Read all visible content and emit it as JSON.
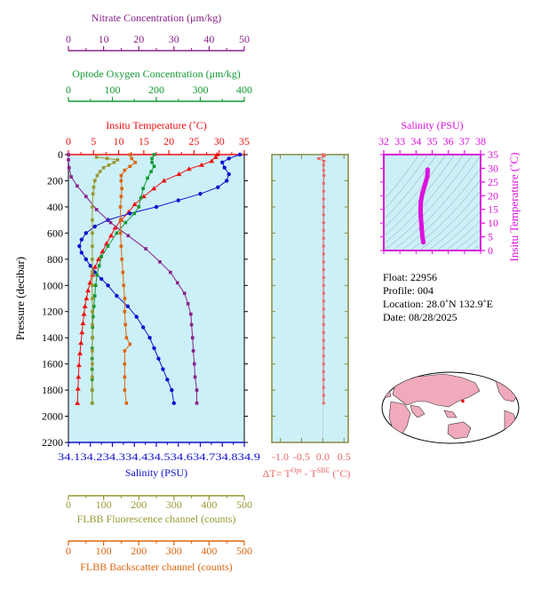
{
  "colors": {
    "nitrate": "#882288",
    "oxygen": "#119933",
    "temperature": "#ee1111",
    "salinity": "#1111cc",
    "fluorescence": "#999933",
    "backscatter": "#dd6611",
    "delta": "#ee6666",
    "ts": "#dd11dd",
    "plot_bg": "#ccf0f8",
    "axis": "#888844"
  },
  "chart_data": [
    {
      "type": "line",
      "ylabel": "Pressure (decibar)",
      "yticks": [
        0,
        200,
        400,
        600,
        800,
        1000,
        1200,
        1400,
        1600,
        1800,
        2000,
        2200
      ],
      "ylim": [
        0,
        2200
      ],
      "axes": {
        "nitrate": {
          "label": "Nitrate Concentration (μm/kg)",
          "ticks": [
            0,
            10,
            20,
            30,
            40,
            50
          ],
          "range": [
            0,
            50
          ]
        },
        "oxygen": {
          "label": "Optode Oxygen Concentration (μm/kg)",
          "ticks": [
            0,
            100,
            200,
            300,
            400
          ],
          "range": [
            0,
            400
          ]
        },
        "temperature": {
          "label": "Insitu Temperature (˚C)",
          "ticks": [
            0,
            5,
            10,
            15,
            20,
            25,
            30,
            35
          ],
          "range": [
            0,
            35
          ]
        },
        "salinity": {
          "label": "Salinity (PSU)",
          "ticks": [
            "34.1",
            "34.2",
            "34.3",
            "34.4",
            "34.5",
            "34.6",
            "34.7",
            "34.8",
            "34.9"
          ],
          "tick_row": "34.134.234.334.434.534.634.734.834.9",
          "range": [
            34.1,
            34.9
          ]
        },
        "fluorescence": {
          "label": "FLBB Fluorescence channel (counts)",
          "ticks": [
            0,
            100,
            200,
            300,
            400,
            500
          ],
          "range": [
            0,
            500
          ]
        },
        "backscatter": {
          "label": "FLBB Backscatter channel (counts)",
          "ticks": [
            0,
            100,
            200,
            300,
            400,
            500
          ],
          "range": [
            0,
            500
          ]
        }
      },
      "series": [
        {
          "key": "temperature",
          "axis": "temperature",
          "points": [
            [
              29.6,
              0
            ],
            [
              29.3,
              20
            ],
            [
              28.5,
              50
            ],
            [
              26.5,
              80
            ],
            [
              24,
              110
            ],
            [
              22,
              150
            ],
            [
              19,
              200
            ],
            [
              17,
              260
            ],
            [
              15,
              320
            ],
            [
              13.2,
              380
            ],
            [
              12,
              440
            ],
            [
              10.5,
              500
            ],
            [
              9.3,
              560
            ],
            [
              8.5,
              620
            ],
            [
              7.6,
              680
            ],
            [
              6.8,
              740
            ],
            [
              6,
              800
            ],
            [
              5.3,
              860
            ],
            [
              4.8,
              920
            ],
            [
              4.3,
              980
            ],
            [
              3.9,
              1040
            ],
            [
              3.6,
              1100
            ],
            [
              3.3,
              1160
            ],
            [
              3.1,
              1220
            ],
            [
              2.9,
              1290
            ],
            [
              2.7,
              1360
            ],
            [
              2.5,
              1440
            ],
            [
              2.3,
              1520
            ],
            [
              2.1,
              1610
            ],
            [
              2.0,
              1700
            ],
            [
              1.9,
              1790
            ],
            [
              1.8,
              1900
            ]
          ]
        },
        {
          "key": "salinity",
          "axis": "salinity",
          "points": [
            [
              34.88,
              0
            ],
            [
              34.83,
              30
            ],
            [
              34.8,
              60
            ],
            [
              34.81,
              100
            ],
            [
              34.83,
              150
            ],
            [
              34.82,
              200
            ],
            [
              34.78,
              250
            ],
            [
              34.7,
              300
            ],
            [
              34.6,
              350
            ],
            [
              34.5,
              400
            ],
            [
              34.38,
              450
            ],
            [
              34.28,
              500
            ],
            [
              34.22,
              550
            ],
            [
              34.18,
              600
            ],
            [
              34.16,
              650
            ],
            [
              34.15,
              700
            ],
            [
              34.16,
              750
            ],
            [
              34.18,
              800
            ],
            [
              34.2,
              850
            ],
            [
              34.22,
              900
            ],
            [
              34.25,
              950
            ],
            [
              34.28,
              1000
            ],
            [
              34.32,
              1080
            ],
            [
              34.37,
              1160
            ],
            [
              34.41,
              1240
            ],
            [
              34.44,
              1320
            ],
            [
              34.47,
              1400
            ],
            [
              34.49,
              1480
            ],
            [
              34.51,
              1560
            ],
            [
              34.53,
              1640
            ],
            [
              34.55,
              1720
            ],
            [
              34.57,
              1800
            ],
            [
              34.58,
              1900
            ]
          ]
        },
        {
          "key": "oxygen",
          "axis": "oxygen",
          "points": [
            [
              195,
              0
            ],
            [
              190,
              30
            ],
            [
              190,
              60
            ],
            [
              195,
              90
            ],
            [
              188,
              130
            ],
            [
              180,
              180
            ],
            [
              170,
              260
            ],
            [
              165,
              330
            ],
            [
              160,
              400
            ],
            [
              150,
              450
            ],
            [
              130,
              520
            ],
            [
              110,
              600
            ],
            [
              90,
              700
            ],
            [
              75,
              780
            ],
            [
              70,
              850
            ],
            [
              65,
              920
            ],
            [
              62,
              1000
            ],
            [
              60,
              1080
            ],
            [
              58,
              1160
            ],
            [
              56,
              1240
            ],
            [
              55,
              1320
            ],
            [
              55,
              1400
            ],
            [
              54,
              1480
            ],
            [
              54,
              1560
            ],
            [
              54,
              1640
            ],
            [
              54,
              1720
            ],
            [
              54,
              1800
            ],
            [
              54,
              1900
            ]
          ]
        },
        {
          "key": "nitrate",
          "axis": "nitrate",
          "points": [
            [
              0,
              0
            ],
            [
              0,
              40
            ],
            [
              0.2,
              100
            ],
            [
              0.8,
              170
            ],
            [
              2.5,
              240
            ],
            [
              5,
              320
            ],
            [
              8,
              420
            ],
            [
              12,
              520
            ],
            [
              17,
              620
            ],
            [
              22,
              720
            ],
            [
              26,
              820
            ],
            [
              29,
              900
            ],
            [
              31,
              980
            ],
            [
              33,
              1060
            ],
            [
              34,
              1140
            ],
            [
              34.8,
              1220
            ],
            [
              35,
              1300
            ],
            [
              35.3,
              1400
            ],
            [
              35.5,
              1500
            ],
            [
              35.8,
              1600
            ],
            [
              36,
              1700
            ],
            [
              36.5,
              1800
            ],
            [
              36.5,
              1900
            ]
          ]
        },
        {
          "key": "fluorescence",
          "axis": "fluorescence",
          "points": [
            [
              80,
              20
            ],
            [
              110,
              30
            ],
            [
              140,
              40
            ],
            [
              130,
              60
            ],
            [
              115,
              80
            ],
            [
              100,
              100
            ],
            [
              90,
              130
            ],
            [
              82,
              160
            ],
            [
              75,
              200
            ],
            [
              72,
              250
            ],
            [
              70,
              300
            ],
            [
              68,
              400
            ],
            [
              68,
              500
            ],
            [
              68,
              600
            ],
            [
              68,
              700
            ],
            [
              68,
              800
            ],
            [
              68,
              900
            ],
            [
              68,
              1000
            ],
            [
              68,
              1100
            ],
            [
              68,
              1200
            ],
            [
              68,
              1300
            ],
            [
              68,
              1400
            ],
            [
              68,
              1500
            ],
            [
              68,
              1600
            ],
            [
              68,
              1700
            ],
            [
              68,
              1800
            ],
            [
              68,
              1900
            ]
          ]
        },
        {
          "key": "backscatter",
          "axis": "backscatter",
          "points": [
            [
              175,
              0
            ],
            [
              180,
              30
            ],
            [
              190,
              60
            ],
            [
              175,
              90
            ],
            [
              160,
              120
            ],
            [
              150,
              160
            ],
            [
              150,
              200
            ],
            [
              152,
              260
            ],
            [
              150,
              320
            ],
            [
              148,
              400
            ],
            [
              148,
              500
            ],
            [
              148,
              600
            ],
            [
              150,
              700
            ],
            [
              152,
              800
            ],
            [
              155,
              900
            ],
            [
              157,
              1000
            ],
            [
              160,
              1100
            ],
            [
              160,
              1200
            ],
            [
              162,
              1300
            ],
            [
              165,
              1400
            ],
            [
              175,
              1450
            ],
            [
              160,
              1500
            ],
            [
              160,
              1600
            ],
            [
              160,
              1700
            ],
            [
              160,
              1800
            ],
            [
              165,
              1900
            ]
          ]
        }
      ]
    },
    {
      "type": "line",
      "xlabel": "ΔT= T^Opt - T^SBE (˚C)",
      "xlabel_parts": {
        "pre": "ΔT= T",
        "sup1": "Opt",
        "mid": " - T",
        "sup2": "SBE",
        "post": " (˚C)"
      },
      "xticks": [
        "-1.0",
        "-0.5",
        "0.0",
        "0.5"
      ],
      "xlim": [
        -1.2,
        0.6
      ],
      "ylim": [
        0,
        2200
      ],
      "series": [
        {
          "key": "delta",
          "points": [
            [
              0,
              0
            ],
            [
              0.04,
              10
            ],
            [
              -0.1,
              30
            ],
            [
              0.03,
              50
            ],
            [
              0.02,
              80
            ],
            [
              0.02,
              120
            ],
            [
              0.03,
              160
            ],
            [
              0.02,
              220
            ],
            [
              0.02,
              280
            ],
            [
              0.02,
              340
            ],
            [
              0.02,
              400
            ],
            [
              0.02,
              460
            ],
            [
              0.02,
              520
            ],
            [
              0.02,
              580
            ],
            [
              0.02,
              640
            ],
            [
              0.02,
              700
            ],
            [
              0.02,
              760
            ],
            [
              0.02,
              820
            ],
            [
              0.02,
              880
            ],
            [
              0.02,
              940
            ],
            [
              0.02,
              1000
            ],
            [
              0.02,
              1060
            ],
            [
              0.02,
              1120
            ],
            [
              0.02,
              1180
            ],
            [
              0.02,
              1240
            ],
            [
              0.02,
              1300
            ],
            [
              0.02,
              1360
            ],
            [
              0.02,
              1420
            ],
            [
              0.02,
              1480
            ],
            [
              0.02,
              1540
            ],
            [
              0.02,
              1600
            ],
            [
              0.02,
              1660
            ],
            [
              0.02,
              1720
            ],
            [
              0.02,
              1780
            ],
            [
              0.02,
              1840
            ],
            [
              0.02,
              1900
            ]
          ]
        }
      ]
    },
    {
      "type": "scatter",
      "title": "Salinity (PSU)",
      "xticks": [
        32,
        33,
        34,
        35,
        36,
        37,
        38
      ],
      "xlim": [
        32,
        38
      ],
      "ylabel": "Insitu Temperature (˚C)",
      "yticks": [
        0,
        5,
        10,
        15,
        20,
        25,
        30,
        35
      ],
      "ylim": [
        0,
        35
      ],
      "series": [
        {
          "key": "ts",
          "points": [
            [
              34.45,
              3
            ],
            [
              34.4,
              5
            ],
            [
              34.35,
              8
            ],
            [
              34.3,
              12
            ],
            [
              34.28,
              15
            ],
            [
              34.3,
              18
            ],
            [
              34.4,
              21
            ],
            [
              34.55,
              24
            ],
            [
              34.7,
              27
            ],
            [
              34.72,
              29.5
            ]
          ]
        }
      ]
    }
  ],
  "info": {
    "float": "Float:  22956",
    "profile": "Profile:  004",
    "location": "Location:  28.0˚N  132.9˚E",
    "date": "Date:  08/28/2025"
  }
}
